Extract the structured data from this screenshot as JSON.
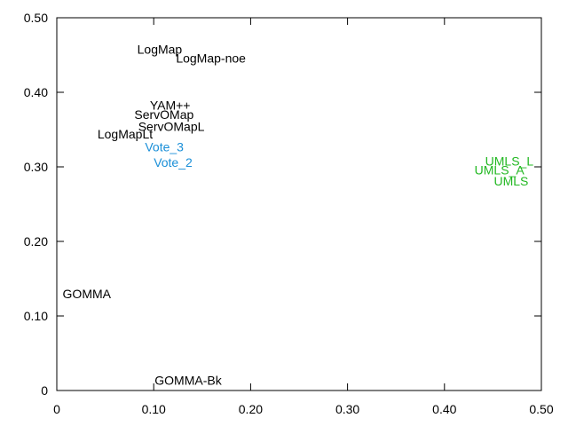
{
  "chart_data": {
    "type": "scatter",
    "title": "",
    "xlabel": "",
    "ylabel": "",
    "xlim": [
      0,
      0.5
    ],
    "ylim": [
      0,
      0.5
    ],
    "grid": false,
    "x_ticks": [
      "0",
      "0.10",
      "0.20",
      "0.30",
      "0.40",
      "0.50"
    ],
    "y_ticks": [
      "0",
      "0.10",
      "0.20",
      "0.30",
      "0.40",
      "0.50"
    ],
    "colors": {
      "default": "#000000",
      "vote": "#1a8fd8",
      "umls": "#22b822"
    },
    "points": [
      {
        "label": "LogMap",
        "x": 0.083,
        "y": 0.452,
        "color": "default"
      },
      {
        "label": "LogMap-noe",
        "x": 0.123,
        "y": 0.44,
        "color": "default"
      },
      {
        "label": "YAM++",
        "x": 0.096,
        "y": 0.377,
        "color": "default"
      },
      {
        "label": "ServOMap",
        "x": 0.08,
        "y": 0.364,
        "color": "default"
      },
      {
        "label": "ServOMapL",
        "x": 0.084,
        "y": 0.348,
        "color": "default"
      },
      {
        "label": "LogMapLt",
        "x": 0.042,
        "y": 0.338,
        "color": "default"
      },
      {
        "label": "Vote_3",
        "x": 0.091,
        "y": 0.321,
        "color": "vote"
      },
      {
        "label": "Vote_2",
        "x": 0.1,
        "y": 0.3,
        "color": "vote"
      },
      {
        "label": "UMLS_L",
        "x": 0.442,
        "y": 0.302,
        "color": "umls"
      },
      {
        "label": "UMLS_A",
        "x": 0.431,
        "y": 0.29,
        "color": "umls"
      },
      {
        "label": "UMLS",
        "x": 0.451,
        "y": 0.275,
        "color": "umls"
      },
      {
        "label": "GOMMA",
        "x": 0.006,
        "y": 0.124,
        "color": "default"
      },
      {
        "label": "GOMMA-Bk",
        "x": 0.101,
        "y": 0.008,
        "color": "default"
      }
    ]
  }
}
